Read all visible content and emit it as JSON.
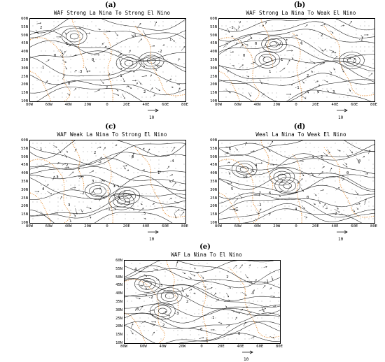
{
  "colors": {
    "coast": "#e8923a",
    "contour": "#1a1a1a",
    "vector": "#222222",
    "dot": "#8a8a8a"
  },
  "axes": {
    "lat_labels": [
      "60N",
      "55N",
      "50N",
      "45N",
      "40N",
      "35N",
      "30N",
      "25N",
      "20N",
      "15N",
      "10N"
    ],
    "lon_labels": [
      "80W",
      "60W",
      "40W",
      "20W",
      "0",
      "20E",
      "40E",
      "60E",
      "80E"
    ]
  },
  "reference_vector": {
    "label": "10"
  },
  "panels": [
    {
      "letter": "(a)",
      "title": "WAF Strong La Nina To Strong El Nino",
      "contour_labels": [
        "2",
        "1",
        "0",
        "-1",
        "2",
        "1",
        "0",
        "3",
        "2",
        "-1",
        "-2",
        "1",
        "0"
      ]
    },
    {
      "letter": "(b)",
      "title": "WAF Strong La Nina To Weak El Nino",
      "contour_labels": [
        "-1",
        "0",
        "1",
        "2",
        "3",
        "-2",
        "0",
        "1",
        "-1",
        "2"
      ]
    },
    {
      "letter": "(c)",
      "title": "WAF Weak La Nina To Strong El Nino",
      "contour_labels": [
        "1",
        "2",
        "3",
        "4",
        "5",
        "-4",
        "-3",
        "-2",
        "-1",
        "0",
        "1",
        "4",
        "3",
        "2"
      ]
    },
    {
      "letter": "(d)",
      "title": "Weal La Nina To Weak El Nino",
      "contour_labels": [
        "6",
        "4",
        "2",
        "0",
        "-2",
        "0",
        "10",
        "6",
        "4",
        "2",
        "0",
        "5",
        "-2"
      ]
    },
    {
      "letter": "(e)",
      "title": "WAF  La Nina  To  El Nino",
      "contour_labels": [
        "4",
        "3",
        "2",
        "1",
        "0",
        "-1",
        "-2",
        "-3",
        "0",
        "1",
        "2",
        "3",
        "2"
      ]
    }
  ]
}
